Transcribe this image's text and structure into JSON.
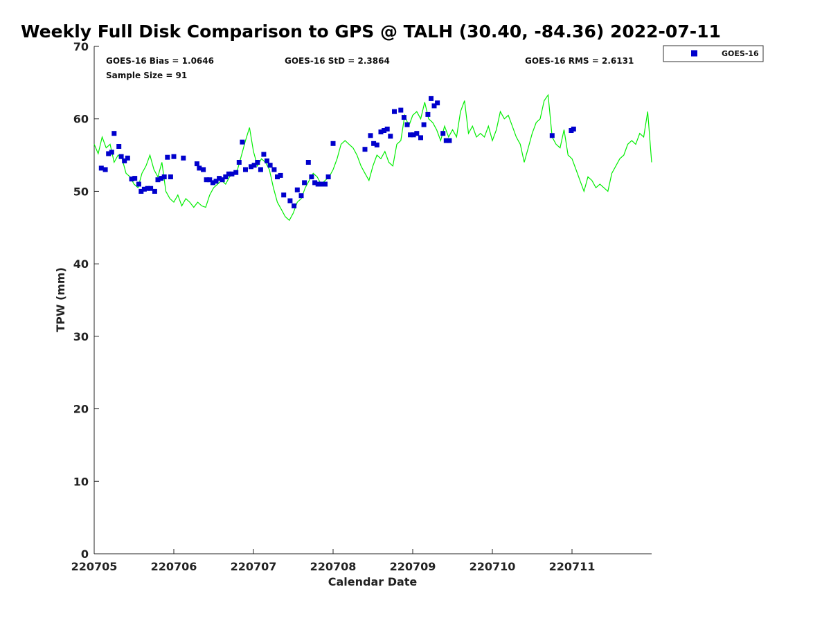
{
  "chart_data": {
    "type": "scatter",
    "title": "Weekly Full Disk Comparison to GPS @ TALH (30.40, -84.36) 2022-07-11",
    "xlabel": "Calendar Date",
    "ylabel": "TPW (mm)",
    "xlim": [
      220705,
      220712
    ],
    "ylim": [
      0,
      70
    ],
    "x_ticks": [
      "220705",
      "220706",
      "220707",
      "220708",
      "220709",
      "220710",
      "220711"
    ],
    "y_ticks": [
      "0",
      "10",
      "20",
      "30",
      "40",
      "50",
      "60",
      "70"
    ],
    "grid": false,
    "legend_placement": "outside-top-right",
    "stats": {
      "bias": "GOES-16 Bias = 1.0646",
      "std": "GOES-16 StD = 2.3864",
      "rms": "GOES-16 RMS = 2.6131",
      "sample": "Sample Size = 91"
    },
    "series": [
      {
        "name": "GOES-16",
        "kind": "scatter",
        "color": "#0000cc",
        "marker": "square",
        "x_day_offset": [
          0.09,
          0.14,
          0.18,
          0.22,
          0.25,
          0.31,
          0.34,
          0.38,
          0.42,
          0.47,
          0.51,
          0.56,
          0.59,
          0.63,
          0.67,
          0.71,
          0.76,
          0.8,
          0.84,
          0.88,
          0.92,
          0.96,
          1.0,
          1.12,
          1.29,
          1.32,
          1.37,
          1.41,
          1.45,
          1.49,
          1.53,
          1.57,
          1.61,
          1.65,
          1.69,
          1.73,
          1.78,
          1.82,
          1.86,
          1.9,
          1.97,
          2.01,
          2.05,
          2.09,
          2.13,
          2.17,
          2.21,
          2.26,
          2.3,
          2.34,
          2.38,
          2.46,
          2.51,
          2.55,
          2.6,
          2.64,
          2.69,
          2.73,
          2.77,
          2.81,
          2.85,
          2.9,
          2.94,
          3.0,
          3.4,
          3.47,
          3.51,
          3.55,
          3.6,
          3.64,
          3.68,
          3.72,
          3.77,
          3.85,
          3.89,
          3.93,
          3.97,
          4.01,
          4.05,
          4.1,
          4.14,
          4.19,
          4.23,
          4.27,
          4.31,
          4.38,
          4.42,
          4.46,
          5.75,
          5.99,
          6.02
        ],
        "values": [
          53.2,
          53.0,
          55.2,
          55.4,
          58.0,
          56.2,
          54.8,
          54.2,
          54.6,
          51.7,
          51.8,
          51.0,
          50.0,
          50.3,
          50.4,
          50.4,
          50.0,
          51.6,
          51.8,
          52.0,
          54.7,
          52.0,
          54.8,
          54.6,
          53.8,
          53.2,
          53.0,
          51.6,
          51.6,
          51.2,
          51.4,
          51.8,
          51.6,
          52.0,
          52.4,
          52.4,
          52.6,
          54.0,
          56.8,
          53.0,
          53.4,
          53.6,
          54.0,
          53.0,
          55.1,
          54.2,
          53.6,
          53.0,
          52.0,
          52.2,
          49.5,
          48.7,
          48.0,
          50.2,
          49.4,
          51.2,
          54.0,
          52.0,
          51.2,
          51.0,
          51.0,
          51.0,
          52.0,
          56.6,
          55.8,
          57.7,
          56.6,
          56.4,
          58.2,
          58.4,
          58.6,
          57.6,
          61.0,
          61.2,
          60.2,
          59.2,
          57.8,
          57.8,
          58.0,
          57.4,
          59.2,
          60.6,
          62.8,
          61.8,
          62.2,
          58.0,
          57.0,
          57.0,
          57.7,
          58.4,
          58.6
        ]
      },
      {
        "kind": "line",
        "color": "#00ee00",
        "x_day_offset": [
          0,
          0.05,
          0.1,
          0.15,
          0.2,
          0.25,
          0.3,
          0.35,
          0.4,
          0.45,
          0.5,
          0.55,
          0.6,
          0.65,
          0.7,
          0.75,
          0.8,
          0.85,
          0.9,
          0.95,
          1.0,
          1.05,
          1.1,
          1.15,
          1.2,
          1.25,
          1.3,
          1.35,
          1.4,
          1.45,
          1.5,
          1.55,
          1.6,
          1.65,
          1.7,
          1.75,
          1.8,
          1.85,
          1.9,
          1.95,
          2.0,
          2.05,
          2.1,
          2.15,
          2.2,
          2.25,
          2.3,
          2.35,
          2.4,
          2.45,
          2.5,
          2.55,
          2.6,
          2.65,
          2.7,
          2.75,
          2.8,
          2.85,
          2.9,
          2.95,
          3.0,
          3.05,
          3.1,
          3.15,
          3.2,
          3.25,
          3.3,
          3.35,
          3.4,
          3.45,
          3.5,
          3.55,
          3.6,
          3.65,
          3.7,
          3.75,
          3.8,
          3.85,
          3.9,
          3.95,
          4.0,
          4.05,
          4.1,
          4.15,
          4.2,
          4.25,
          4.3,
          4.35,
          4.4,
          4.45,
          4.5,
          4.55,
          4.6,
          4.65,
          4.7,
          4.75,
          4.8,
          4.85,
          4.9,
          4.95,
          5.0,
          5.05,
          5.1,
          5.15,
          5.2,
          5.25,
          5.3,
          5.35,
          5.4,
          5.45,
          5.5,
          5.55,
          5.6,
          5.65,
          5.7,
          5.75,
          5.8,
          5.85,
          5.9,
          5.95,
          6.0,
          6.05,
          6.1,
          6.15,
          6.2,
          6.25,
          6.3,
          6.35,
          6.4,
          6.45,
          6.5,
          6.55,
          6.6,
          6.65,
          6.7,
          6.75,
          6.8,
          6.85,
          6.9,
          6.95,
          7.0
        ],
        "values": [
          56.5,
          55.2,
          57.5,
          56.0,
          56.5,
          54.0,
          55.0,
          54.5,
          52.5,
          52.0,
          51.0,
          50.5,
          52.5,
          53.5,
          55.0,
          53.0,
          52.0,
          54.0,
          50.0,
          49.0,
          48.5,
          49.5,
          48.0,
          49.0,
          48.5,
          47.8,
          48.5,
          48.0,
          47.8,
          49.5,
          50.5,
          51.0,
          51.5,
          51.0,
          52.0,
          52.5,
          53.0,
          55.0,
          57.0,
          58.8,
          55.5,
          53.5,
          54.5,
          54.0,
          53.0,
          50.5,
          48.5,
          47.5,
          46.5,
          46.0,
          47.0,
          48.5,
          49.0,
          50.5,
          51.5,
          52.5,
          52.0,
          51.0,
          51.5,
          52.0,
          53.0,
          54.5,
          56.5,
          57.0,
          56.5,
          56.0,
          55.0,
          53.5,
          52.5,
          51.5,
          53.5,
          55.0,
          54.5,
          55.5,
          54.0,
          53.5,
          56.5,
          57.0,
          60.5,
          59.0,
          60.5,
          61.0,
          60.0,
          62.3,
          60.0,
          59.5,
          58.5,
          57.0,
          59.0,
          57.5,
          58.5,
          57.5,
          61.0,
          62.5,
          58.0,
          59.0,
          57.5,
          58.0,
          57.5,
          59.0,
          57.0,
          58.5,
          61.0,
          60.0,
          60.5,
          59.0,
          57.5,
          56.5,
          54.0,
          56.0,
          58.0,
          59.5,
          60.0,
          62.5,
          63.3,
          57.5,
          56.5,
          56.0,
          58.5,
          55.0,
          54.5,
          53.0,
          51.5,
          50.0,
          52.0,
          51.5,
          50.5,
          51.0,
          50.5,
          50.0,
          52.5,
          53.5,
          54.5,
          55.0,
          56.5,
          57.0,
          56.5,
          58.0,
          57.5,
          61.0,
          54.0
        ]
      }
    ]
  }
}
